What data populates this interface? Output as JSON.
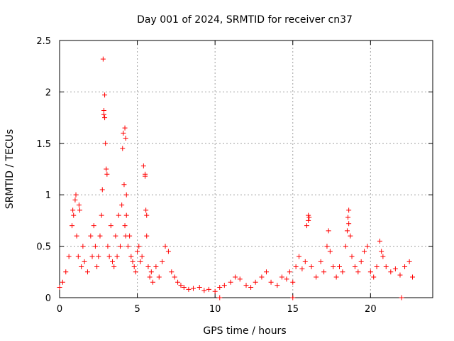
{
  "chart_data": {
    "type": "scatter",
    "title": "Day 001 of 2024, SRMTID for receiver cn37",
    "xlabel": "GPS time / hours",
    "ylabel": "SRMTID / TECUs",
    "xlim": [
      0,
      24
    ],
    "ylim": [
      0,
      2.5
    ],
    "xticks": [
      0,
      5,
      10,
      15,
      20
    ],
    "yticks": [
      0,
      0.5,
      1,
      1.5,
      2,
      2.5
    ],
    "grid": true,
    "marker": "+",
    "series": [
      {
        "name": "SRMTID",
        "color": "#ff0000",
        "x": [
          0.0,
          0.2,
          0.4,
          0.6,
          0.8,
          0.9,
          1.0,
          1.1,
          1.2,
          1.3,
          1.4,
          1.5,
          1.6,
          1.8,
          2.0,
          2.1,
          2.2,
          2.3,
          2.4,
          2.5,
          2.6,
          2.7,
          2.75,
          2.8,
          2.85,
          2.9,
          2.95,
          3.0,
          3.1,
          3.2,
          3.3,
          3.4,
          3.5,
          3.6,
          3.7,
          3.8,
          3.9,
          4.0,
          4.05,
          4.1,
          4.15,
          4.2,
          4.25,
          4.3,
          4.4,
          4.5,
          4.6,
          4.7,
          4.8,
          4.9,
          5.0,
          5.1,
          5.2,
          5.3,
          5.4,
          5.5,
          5.55,
          5.6,
          5.7,
          5.8,
          5.9,
          6.0,
          6.2,
          6.4,
          6.6,
          6.8,
          7.0,
          7.2,
          7.4,
          7.6,
          7.8,
          8.0,
          8.3,
          8.6,
          9.0,
          9.3,
          9.6,
          10.0,
          10.3,
          10.6,
          11.0,
          11.3,
          11.6,
          12.0,
          12.3,
          12.6,
          13.0,
          13.3,
          13.6,
          14.0,
          14.3,
          14.6,
          14.8,
          15.0,
          15.2,
          15.4,
          15.6,
          15.8,
          15.9,
          16.0,
          16.2,
          16.5,
          16.8,
          17.0,
          17.2,
          17.4,
          17.6,
          17.8,
          18.0,
          18.2,
          18.4,
          18.5,
          18.6,
          18.7,
          18.8,
          19.0,
          19.2,
          19.4,
          19.6,
          19.8,
          20.0,
          20.2,
          20.4,
          20.6,
          20.7,
          20.8,
          21.0,
          21.3,
          21.6,
          21.9,
          22.2,
          22.5,
          22.7,
          2.9,
          2.85,
          3.05,
          4.2,
          4.25,
          4.3,
          1.05,
          1.25,
          0.85,
          5.5,
          5.6,
          16.0,
          16.05,
          18.55,
          18.6,
          17.3,
          15.0,
          10.3,
          22.0
        ],
        "y": [
          0.1,
          0.15,
          0.25,
          0.4,
          0.7,
          0.8,
          0.95,
          0.6,
          0.4,
          0.85,
          0.3,
          0.5,
          0.35,
          0.25,
          0.6,
          0.4,
          0.7,
          0.5,
          0.3,
          0.4,
          0.6,
          0.8,
          1.05,
          2.32,
          1.82,
          1.97,
          1.5,
          1.25,
          0.5,
          0.4,
          0.7,
          0.35,
          0.3,
          0.6,
          0.4,
          0.8,
          0.5,
          0.9,
          1.45,
          1.6,
          1.1,
          0.7,
          0.6,
          0.8,
          0.5,
          0.6,
          0.4,
          0.35,
          0.3,
          0.25,
          0.45,
          0.5,
          0.35,
          0.4,
          1.28,
          1.18,
          0.85,
          0.6,
          0.3,
          0.2,
          0.25,
          0.15,
          0.3,
          0.2,
          0.35,
          0.5,
          0.45,
          0.25,
          0.2,
          0.15,
          0.12,
          0.1,
          0.08,
          0.09,
          0.1,
          0.07,
          0.08,
          0.06,
          0.1,
          0.12,
          0.15,
          0.2,
          0.18,
          0.12,
          0.1,
          0.15,
          0.2,
          0.25,
          0.15,
          0.12,
          0.2,
          0.18,
          0.25,
          0.15,
          0.3,
          0.4,
          0.28,
          0.35,
          0.7,
          0.8,
          0.3,
          0.2,
          0.35,
          0.25,
          0.5,
          0.45,
          0.3,
          0.2,
          0.3,
          0.25,
          0.5,
          0.65,
          0.85,
          0.6,
          0.4,
          0.3,
          0.25,
          0.35,
          0.45,
          0.5,
          0.25,
          0.2,
          0.3,
          0.55,
          0.45,
          0.4,
          0.3,
          0.25,
          0.28,
          0.22,
          0.3,
          0.35,
          0.2,
          1.75,
          1.78,
          1.2,
          1.65,
          1.55,
          1.0,
          1.0,
          0.9,
          0.85,
          1.2,
          0.8,
          0.75,
          0.78,
          0.78,
          0.72,
          0.65,
          0.0,
          0.0,
          0.0
        ]
      }
    ]
  }
}
